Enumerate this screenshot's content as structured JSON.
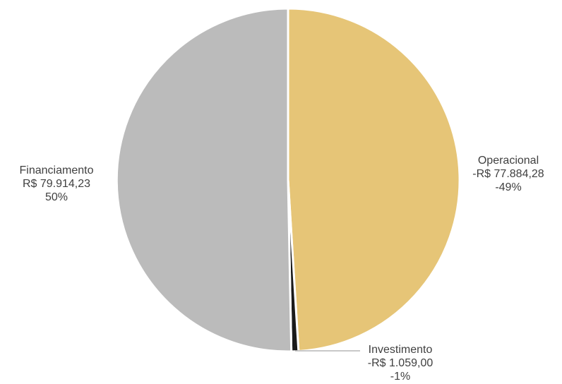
{
  "chart_data": {
    "type": "pie",
    "title": "",
    "currency": "R$",
    "slices": [
      {
        "key": "operacional",
        "category": "Operacional",
        "value": -77884.28,
        "value_label": "-R$ 77.884,28",
        "percent_label": "-49%",
        "color": "#E6C577"
      },
      {
        "key": "investimento",
        "category": "Investimento",
        "value": -1059.0,
        "value_label": "-R$ 1.059,00",
        "percent_label": "-1%",
        "color": "#1A1A1A"
      },
      {
        "key": "financiamento",
        "category": "Financiamento",
        "value": 79914.23,
        "value_label": "R$ 79.914,23",
        "percent_label": "50%",
        "color": "#BBBBBB"
      }
    ],
    "start_angle_deg": 0,
    "direction": "clockwise",
    "slice_border_color": "#FFFFFF",
    "label_color": "#404040",
    "leader_line_color": "#A6A6A6",
    "legend": "none"
  }
}
